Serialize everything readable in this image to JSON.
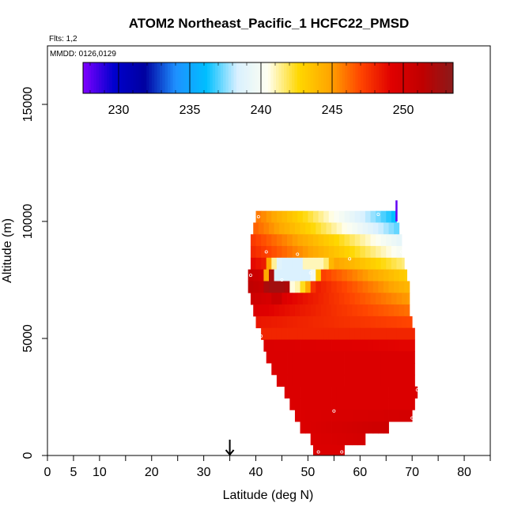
{
  "chart_data": {
    "type": "heatmap",
    "title": "ATOM2 Northeast_Pacific_1 HCFC22_PMSD",
    "flights_label": "Flts: 1,2",
    "dates_label": "MMDD: 0126,0129",
    "xlabel": "Latitude (deg N)",
    "ylabel": "Altitude (m)",
    "xlim": [
      0,
      85
    ],
    "ylim": [
      0,
      17500
    ],
    "xticks": [
      0,
      5,
      10,
      20,
      30,
      40,
      50,
      60,
      70,
      80
    ],
    "xtick_labels": [
      "0",
      "5",
      "10",
      "20",
      "30",
      "40",
      "50",
      "60",
      "70",
      "80"
    ],
    "xticks_minor": [
      15,
      25,
      35,
      45,
      55,
      65,
      75,
      85
    ],
    "yticks": [
      0,
      5000,
      10000,
      15000
    ],
    "ytick_labels": [
      "0",
      "5000",
      "10000",
      "15000"
    ],
    "colorbar": {
      "min": 227.5,
      "max": 253.5,
      "ticks": [
        230,
        235,
        240,
        245,
        250
      ],
      "tick_labels": [
        "230",
        "235",
        "240",
        "245",
        "250"
      ],
      "colors": [
        "#7f00ff",
        "#0000cd",
        "#0000a0",
        "#1e90ff",
        "#00bfff",
        "#d8f0ff",
        "#fffff0",
        "#ffd700",
        "#ffa500",
        "#ff4500",
        "#e00000",
        "#c00000",
        "#8b1a1a"
      ]
    },
    "marker_latitude": 35,
    "rows": [
      {
        "alt": 10200,
        "x0": 40.0,
        "x1": 67.0,
        "v0": 246.0,
        "v1": 236.0
      },
      {
        "alt": 9700,
        "x0": 39.5,
        "x1": 67.5,
        "v0": 246.5,
        "v1": 237.0
      },
      {
        "alt": 9200,
        "x0": 39.0,
        "x1": 68.0,
        "v0": 247.5,
        "v1": 239.0
      },
      {
        "alt": 8700,
        "x0": 39.0,
        "x1": 68.0,
        "v0": 248.0,
        "v1": 240.0
      },
      {
        "alt": 8200,
        "x0": 39.0,
        "x1": 68.5,
        "v0": 249.0,
        "v1": 241.5
      },
      {
        "alt": 7700,
        "x0": 38.5,
        "x1": 69.0,
        "v0": 251.0,
        "v1": 243.0
      },
      {
        "alt": 7200,
        "x0": 38.5,
        "x1": 69.5,
        "v0": 251.5,
        "v1": 244.0
      },
      {
        "alt": 6700,
        "x0": 39.0,
        "x1": 69.5,
        "v0": 250.5,
        "v1": 245.0
      },
      {
        "alt": 6200,
        "x0": 39.5,
        "x1": 69.5,
        "v0": 249.5,
        "v1": 246.0
      },
      {
        "alt": 5700,
        "x0": 40.0,
        "x1": 70.0,
        "v0": 248.5,
        "v1": 247.0
      },
      {
        "alt": 5200,
        "x0": 41.0,
        "x1": 70.5,
        "v0": 248.0,
        "v1": 248.0
      },
      {
        "alt": 4700,
        "x0": 41.5,
        "x1": 70.5,
        "v0": 249.5,
        "v1": 249.0
      },
      {
        "alt": 4200,
        "x0": 42.0,
        "x1": 70.5,
        "v0": 249.5,
        "v1": 249.5
      },
      {
        "alt": 3700,
        "x0": 43.0,
        "x1": 70.5,
        "v0": 249.5,
        "v1": 249.5
      },
      {
        "alt": 3200,
        "x0": 44.0,
        "x1": 70.5,
        "v0": 249.5,
        "v1": 249.5
      },
      {
        "alt": 2700,
        "x0": 45.5,
        "x1": 71.0,
        "v0": 249.5,
        "v1": 249.5
      },
      {
        "alt": 2200,
        "x0": 46.5,
        "x1": 70.5,
        "v0": 249.5,
        "v1": 249.5
      },
      {
        "alt": 1700,
        "x0": 47.5,
        "x1": 70.0,
        "v0": 249.5,
        "v1": 250.0
      },
      {
        "alt": 1200,
        "x0": 48.5,
        "x1": 65.5,
        "v0": 249.5,
        "v1": 250.5
      },
      {
        "alt": 700,
        "x0": 50.5,
        "x1": 61.0,
        "v0": 249.5,
        "v1": 250.0
      },
      {
        "alt": 200,
        "x0": 51.0,
        "x1": 57.0,
        "v0": 249.5,
        "v1": 249.5
      }
    ],
    "anomalies": [
      {
        "lat": 47.0,
        "alt": 7800,
        "width": 12.0,
        "height": 1700,
        "value": 238.5
      },
      {
        "lat": 51.0,
        "alt": 8300,
        "width": 8.0,
        "height": 700,
        "value": 241.0
      },
      {
        "lat": 44.0,
        "alt": 7300,
        "width": 6.0,
        "height": 1400,
        "value": 252.5
      }
    ],
    "observations": [
      {
        "lat": 40.5,
        "alt": 10200
      },
      {
        "lat": 63.5,
        "alt": 10300
      },
      {
        "lat": 42.0,
        "alt": 8700
      },
      {
        "lat": 48.0,
        "alt": 8600
      },
      {
        "lat": 68.0,
        "alt": 8700
      },
      {
        "lat": 39.0,
        "alt": 7700
      },
      {
        "lat": 45.0,
        "alt": 7500
      },
      {
        "lat": 50.5,
        "alt": 7800
      },
      {
        "lat": 58.0,
        "alt": 8400
      },
      {
        "lat": 41.0,
        "alt": 5100
      },
      {
        "lat": 71.0,
        "alt": 2800
      },
      {
        "lat": 55.0,
        "alt": 1900
      },
      {
        "lat": 70.0,
        "alt": 1600
      },
      {
        "lat": 52.0,
        "alt": 150
      },
      {
        "lat": 56.5,
        "alt": 150
      }
    ],
    "profile_spike": {
      "lat": 67.0,
      "alt0": 10000,
      "alt1": 10900,
      "value": 228.0
    }
  }
}
